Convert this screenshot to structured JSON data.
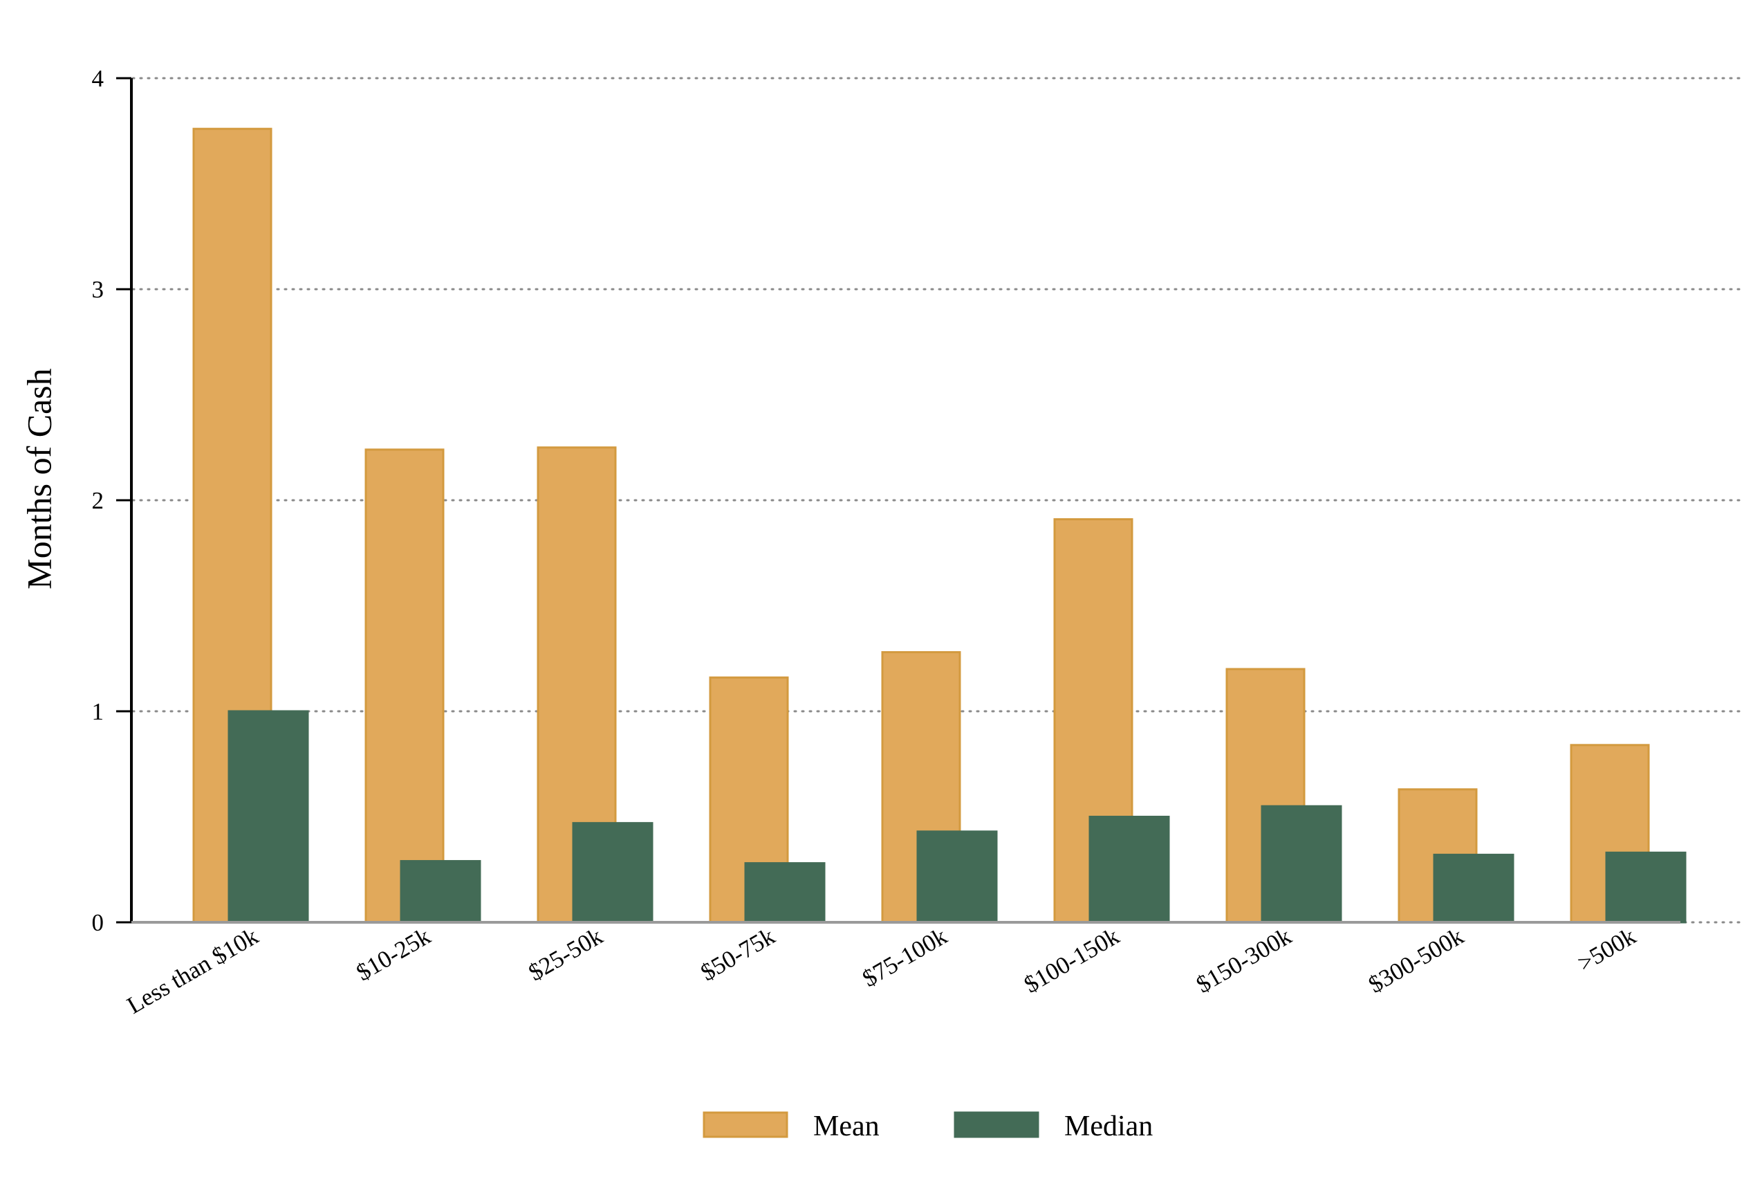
{
  "chart_data": {
    "type": "bar",
    "categories": [
      "Less than $10k",
      "$10-25k",
      "$25-50k",
      "$50-75k",
      "$75-100k",
      "$100-150k",
      "$150-300k",
      "$300-500k",
      ">500k"
    ],
    "series": [
      {
        "name": "Mean",
        "values": [
          3.76,
          2.24,
          2.25,
          1.16,
          1.28,
          1.91,
          1.2,
          0.63,
          0.84
        ],
        "color": "#E1A95B",
        "stroke": "#D39A3F"
      },
      {
        "name": "Median",
        "values": [
          1.0,
          0.29,
          0.47,
          0.28,
          0.43,
          0.5,
          0.55,
          0.32,
          0.33
        ],
        "color": "#436B56",
        "stroke": "#436B56"
      }
    ],
    "title": "",
    "xlabel": "",
    "ylabel": "Months of Cash",
    "ylim": [
      0,
      4
    ],
    "yticks": [
      0,
      1,
      2,
      3,
      4
    ],
    "ytick_labels": [
      "0",
      "1",
      "2",
      "3",
      "4"
    ],
    "grid": "horizontal dotted",
    "legend_position": "bottom-center"
  }
}
